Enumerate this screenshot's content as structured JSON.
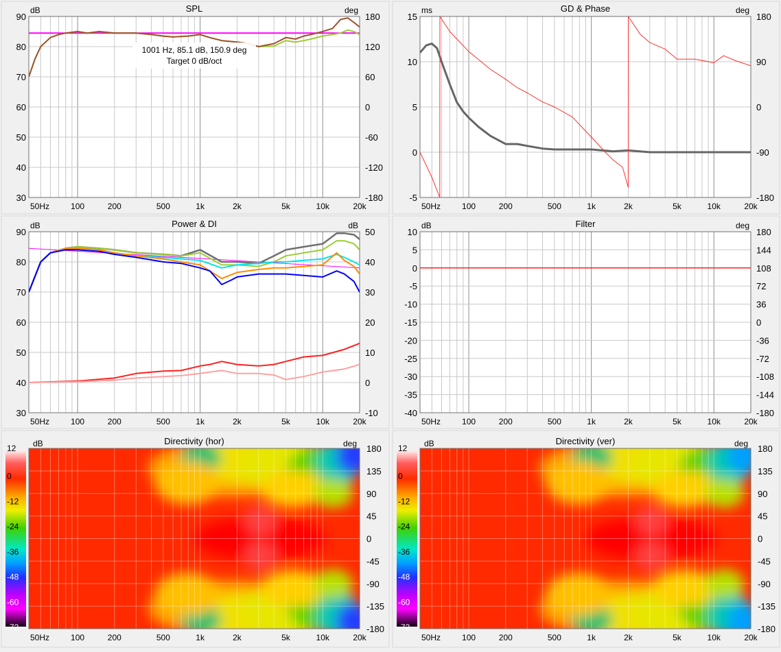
{
  "x_ticks": [
    "50Hz",
    "100",
    "200",
    "500",
    "1k",
    "2k",
    "5k",
    "10k",
    "20k"
  ],
  "x_tick_freqs": [
    50,
    100,
    200,
    500,
    1000,
    2000,
    5000,
    10000,
    20000
  ],
  "x_range_hz": [
    40,
    20000
  ],
  "colors": {
    "grid": "#c8c8c8",
    "grid_major": "#8c8c8c",
    "panel_bg": "#ffffff",
    "page_bg": "#f0f0f0"
  },
  "chart_data": [
    {
      "id": "spl",
      "type": "line",
      "title": "SPL",
      "left_unit": "dB",
      "right_unit": "deg",
      "ylim": [
        30,
        90
      ],
      "y2lim": [
        -180,
        180
      ],
      "y_ticks": [
        "30",
        "40",
        "50",
        "60",
        "70",
        "80",
        "90"
      ],
      "y2_ticks": [
        "-180",
        "-120",
        "-60",
        "0",
        "60",
        "120",
        "180"
      ],
      "readout": [
        "1001 Hz, 85.1 dB, 150.9 deg",
        "Target 0 dB/oct"
      ],
      "series": [
        {
          "color": "#ff00ff",
          "width": 2,
          "y_axis": "left",
          "x": [
            40,
            20000
          ],
          "y": [
            84.5,
            84.5
          ]
        },
        {
          "color": "#9acd32",
          "width": 2,
          "y_axis": "left",
          "x": [
            40,
            45,
            50,
            60,
            70,
            80,
            100,
            120,
            150,
            200,
            300,
            400,
            500,
            600,
            800,
            1000,
            1200,
            1500,
            2000,
            2500,
            3000,
            4000,
            5000,
            6000,
            7000,
            8000,
            10000,
            12000,
            14000,
            16000,
            18000,
            20000
          ],
          "y": [
            70,
            76,
            80,
            83,
            84,
            84.5,
            85,
            84.5,
            85,
            84.5,
            84.5,
            84,
            83.5,
            83.2,
            83.5,
            84,
            83,
            82,
            81.5,
            81,
            80,
            80.2,
            82,
            81.5,
            82,
            82.5,
            83.5,
            84,
            84.5,
            85.5,
            85,
            84
          ]
        },
        {
          "color": "#a0522d",
          "width": 2,
          "y_axis": "left",
          "x": [
            40,
            45,
            50,
            60,
            70,
            80,
            100,
            120,
            150,
            200,
            300,
            400,
            500,
            600,
            800,
            1000,
            1200,
            1500,
            2000,
            2500,
            3000,
            4000,
            5000,
            6000,
            7000,
            8000,
            10000,
            12000,
            14000,
            16000,
            18000,
            20000
          ],
          "y": [
            70,
            76,
            80,
            83,
            84,
            84.5,
            85,
            84.5,
            85,
            84.5,
            84.5,
            84,
            83.5,
            83.2,
            83.5,
            84,
            83,
            82,
            81.5,
            81,
            80,
            81,
            83,
            82.5,
            83.5,
            84,
            85,
            86,
            89,
            89.5,
            88,
            86.5
          ]
        }
      ]
    },
    {
      "id": "gdphase",
      "type": "line",
      "title": "GD & Phase",
      "left_unit": "ms",
      "right_unit": "deg",
      "ylim": [
        -5,
        15
      ],
      "y2lim": [
        -180,
        180
      ],
      "y_ticks": [
        "-5",
        "0",
        "5",
        "10",
        "15"
      ],
      "y2_ticks": [
        "-180",
        "-90",
        "0",
        "90",
        "180"
      ],
      "series": [
        {
          "color": "#666666",
          "width": 3,
          "y_axis": "left",
          "x": [
            40,
            45,
            50,
            55,
            60,
            70,
            80,
            90,
            100,
            120,
            150,
            200,
            250,
            300,
            400,
            500,
            700,
            1000,
            1500,
            2000,
            3000,
            5000,
            10000,
            20000
          ],
          "y": [
            11,
            11.8,
            12,
            11.5,
            10,
            7.5,
            5.5,
            4.5,
            3.8,
            2.8,
            1.8,
            0.9,
            0.9,
            0.7,
            0.4,
            0.3,
            0.3,
            0.3,
            0.1,
            0.2,
            0,
            0,
            0,
            0
          ]
        },
        {
          "color": "#ff3030",
          "width": 1,
          "y_axis": "right",
          "x": [
            40,
            50,
            58,
            58.1,
            70,
            100,
            150,
            200,
            250,
            300,
            400,
            500,
            700,
            1000,
            1300,
            1500,
            1800,
            2000,
            2001,
            2500,
            3000,
            4000,
            5000,
            7000,
            10000,
            12000,
            15000,
            20000
          ],
          "y": [
            -90,
            -140,
            -180,
            180,
            150,
            110,
            75,
            55,
            38,
            28,
            10,
            0,
            -20,
            -60,
            -90,
            -105,
            -120,
            -160,
            180,
            145,
            128,
            115,
            95,
            95,
            88,
            102,
            92,
            82
          ]
        }
      ]
    },
    {
      "id": "power",
      "type": "line",
      "title": "Power & DI",
      "left_unit": "dB",
      "right_unit": "dB",
      "ylim": [
        30,
        90
      ],
      "y2lim": [
        -10,
        50
      ],
      "y_ticks": [
        "30",
        "40",
        "50",
        "60",
        "70",
        "80",
        "90"
      ],
      "y2_ticks": [
        "-10",
        "0",
        "10",
        "20",
        "30",
        "40",
        "50"
      ],
      "series": [
        {
          "color": "#ff00ff",
          "width": 1,
          "y_axis": "left",
          "x": [
            40,
            20000
          ],
          "y": [
            84.5,
            78
          ]
        },
        {
          "color": "#707070",
          "width": 2.5,
          "y_axis": "left",
          "x": [
            40,
            50,
            60,
            80,
            100,
            150,
            200,
            300,
            500,
            700,
            1000,
            1500,
            2000,
            3000,
            4000,
            5000,
            7000,
            10000,
            13000,
            15000,
            18000,
            20000
          ],
          "y": [
            70,
            80,
            83,
            84.5,
            85,
            84.5,
            84,
            83,
            82.5,
            82,
            84,
            80,
            80,
            79.5,
            82,
            84,
            85,
            86,
            89.5,
            89.5,
            89,
            87.5
          ]
        },
        {
          "color": "#9acd32",
          "width": 2,
          "y_axis": "left",
          "x": [
            40,
            50,
            60,
            80,
            100,
            150,
            200,
            300,
            500,
            700,
            1000,
            1500,
            2000,
            3000,
            4000,
            5000,
            7000,
            10000,
            13000,
            15000,
            18000,
            20000
          ],
          "y": [
            70,
            80,
            83,
            84.5,
            85,
            84.5,
            84,
            83,
            82.5,
            82,
            83,
            79,
            79,
            78.5,
            80,
            82,
            83,
            84,
            87,
            87,
            86,
            84
          ]
        },
        {
          "color": "#00e5ee",
          "width": 2,
          "y_axis": "left",
          "x": [
            40,
            50,
            60,
            80,
            100,
            150,
            200,
            300,
            500,
            700,
            1000,
            1500,
            2000,
            3000,
            4000,
            5000,
            7000,
            10000,
            13000,
            15000,
            18000,
            20000
          ],
          "y": [
            70,
            80,
            83,
            84.5,
            84.5,
            84,
            83,
            82,
            81.5,
            81,
            80.5,
            78,
            79,
            79.5,
            80,
            80,
            80.5,
            81,
            82.5,
            81.5,
            80,
            79
          ]
        },
        {
          "color": "#ff8c00",
          "width": 2,
          "y_axis": "left",
          "x": [
            40,
            50,
            60,
            80,
            100,
            150,
            200,
            300,
            500,
            700,
            1000,
            1500,
            2000,
            3000,
            4000,
            5000,
            7000,
            10000,
            13000,
            15000,
            18000,
            20000
          ],
          "y": [
            70,
            80,
            83,
            84.5,
            84.5,
            84,
            83,
            82,
            81,
            80,
            79,
            74.5,
            76.5,
            77.5,
            78,
            78,
            78.5,
            79,
            83,
            80.5,
            78.5,
            76
          ]
        },
        {
          "color": "#0000ff",
          "width": 2,
          "y_axis": "left",
          "x": [
            40,
            50,
            60,
            80,
            100,
            150,
            200,
            300,
            500,
            700,
            1000,
            1200,
            1500,
            1800,
            2000,
            3000,
            4000,
            5000,
            7000,
            10000,
            13000,
            15000,
            18000,
            20000
          ],
          "y": [
            70,
            80,
            83,
            84,
            84,
            83.5,
            82.5,
            81.5,
            80,
            79.5,
            78,
            77,
            72.5,
            74,
            75,
            76,
            76,
            76,
            75.5,
            75,
            77,
            76,
            73.5,
            70
          ]
        },
        {
          "color": "#ff2020",
          "width": 2,
          "y_axis": "right",
          "x": [
            40,
            100,
            200,
            300,
            500,
            700,
            1000,
            1200,
            1500,
            2000,
            3000,
            4000,
            5000,
            7000,
            10000,
            15000,
            20000
          ],
          "y": [
            0,
            0.5,
            1.5,
            3,
            3.8,
            4,
            5.5,
            6,
            7,
            6,
            5.5,
            6,
            7,
            8.5,
            9,
            11,
            13
          ]
        },
        {
          "color": "#ffa0a0",
          "width": 2,
          "y_axis": "right",
          "x": [
            40,
            100,
            200,
            300,
            500,
            700,
            1000,
            1200,
            1500,
            2000,
            3000,
            4000,
            5000,
            7000,
            10000,
            15000,
            20000
          ],
          "y": [
            0,
            0.3,
            0.8,
            1.5,
            2,
            2.3,
            3,
            3.5,
            4,
            3,
            3,
            2.5,
            1,
            2,
            3.5,
            4.5,
            6
          ]
        }
      ]
    },
    {
      "id": "filter",
      "type": "line",
      "title": "Filter",
      "left_unit": "dB",
      "right_unit": "deg",
      "ylim": [
        -40,
        10
      ],
      "y2lim": [
        -180,
        180
      ],
      "y_ticks": [
        "10",
        "5",
        "0",
        "-5",
        "-10",
        "-15",
        "-20",
        "-25",
        "-30",
        "-35",
        "-40"
      ],
      "y2_ticks": [
        "180",
        "144",
        "108",
        "72",
        "36",
        "0",
        "-36",
        "-72",
        "-108",
        "-144",
        "-180"
      ],
      "series": [
        {
          "color": "#ff2020",
          "width": 1.5,
          "y_axis": "left",
          "x": [
            40,
            20000
          ],
          "y": [
            0,
            0
          ]
        }
      ]
    },
    {
      "id": "dirhor",
      "type": "heatmap",
      "title": "Directivity (hor)",
      "left_unit": "dB",
      "right_unit": "deg",
      "scale": [
        "12",
        "0",
        "-12",
        "-24",
        "-36",
        "-48",
        "-60",
        "-72"
      ],
      "y2_ticks": [
        "180",
        "135",
        "90",
        "45",
        "0",
        "-45",
        "-90",
        "-135",
        "-180"
      ]
    },
    {
      "id": "dirver",
      "type": "heatmap",
      "title": "Directivity (ver)",
      "left_unit": "dB",
      "right_unit": "deg",
      "scale": [
        "12",
        "0",
        "-12",
        "-24",
        "-36",
        "-48",
        "-60",
        "-72"
      ],
      "y2_ticks": [
        "180",
        "135",
        "90",
        "45",
        "0",
        "-45",
        "-90",
        "-135",
        "-180"
      ]
    }
  ]
}
